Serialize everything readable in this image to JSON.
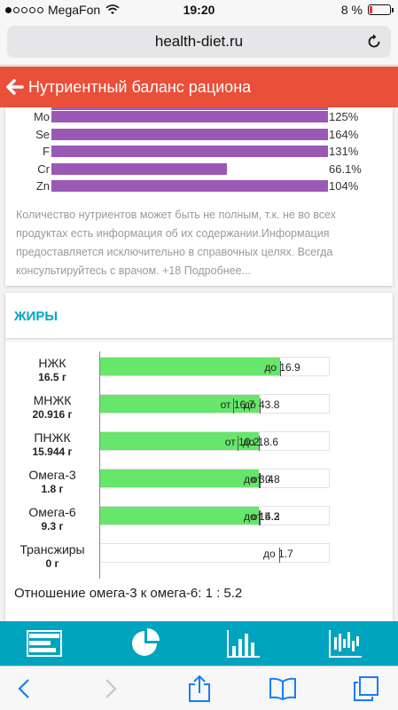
{
  "status_bar": {
    "carrier": "MegaFon",
    "time": "19:20",
    "battery": "8 %",
    "signal_bars_filled": 1,
    "signal_bars_total": 5
  },
  "browser": {
    "url": "health-diet.ru"
  },
  "header": {
    "title": "Нутриентный баланс рациона",
    "color": "#ea4f39"
  },
  "minerals": {
    "bar_color": "#9b59b6",
    "items": [
      {
        "name": "Mo",
        "percent": 125,
        "value_label": "125%"
      },
      {
        "name": "Se",
        "percent": 164,
        "value_label": "164%"
      },
      {
        "name": "F",
        "percent": 131,
        "value_label": "131%"
      },
      {
        "name": "Cr",
        "percent": 66.1,
        "value_label": "66.1%"
      },
      {
        "name": "Zn",
        "percent": 104,
        "value_label": "104%"
      }
    ],
    "disclaimer": "Количество нутриентов может быть не полным, т.к. не во всех продуктах есть информация об их содержании.Информация предоставляется исключительно в справочных целях. Всегда консультируйтесь с врачом. +18 Подробнее..."
  },
  "fats": {
    "title": "ЖИРЫ",
    "title_color": "#00a8c4",
    "bar_color": "#66e66a",
    "chart_data": {
      "type": "bar",
      "orientation": "horizontal",
      "categories": [
        "НЖК",
        "МНЖК",
        "ПНЖК",
        "Омега-3",
        "Омега-6",
        "Трансжиры"
      ],
      "series": [
        {
          "values": [
            16.5,
            20.916,
            15.944,
            1.8,
            9.3,
            0
          ]
        }
      ],
      "ranges": [
        {
          "min": null,
          "max": 16.9
        },
        {
          "min": 16.7,
          "max": 43.8
        },
        {
          "min": 10.2,
          "max": 18.6
        },
        {
          "min": 0.8,
          "max": 3.4
        },
        {
          "min": 4.2,
          "max": 15.3
        },
        {
          "min": null,
          "max": 1.7
        }
      ]
    },
    "rows": [
      {
        "name": "НЖК",
        "amount": "16.5 г",
        "from_text": "",
        "to_text": "до 16.9",
        "fill": 0.785,
        "from_pos": null,
        "to_pos": 0.785
      },
      {
        "name": "МНЖК",
        "amount": "20.916 г",
        "from_text": "от 16.7",
        "to_text": "до 43.8",
        "fill": 0.695,
        "from_pos": 0.58,
        "to_pos": 0.695
      },
      {
        "name": "ПНЖК",
        "amount": "15.944 г",
        "from_text": "от 10.2",
        "to_text": "до 18.6",
        "fill": 0.69,
        "from_pos": 0.6,
        "to_pos": 0.69
      },
      {
        "name": "Омега-3",
        "amount": "1.8 г",
        "from_text": "от 0.8",
        "to_text": "до 3.4",
        "fill": 0.69,
        "from_pos": 0.69,
        "to_pos": 0.695
      },
      {
        "name": "Омега-6",
        "amount": "9.3 г",
        "from_text": "от 4.2",
        "to_text": "до 15.3",
        "fill": 0.69,
        "from_pos": 0.69,
        "to_pos": 0.695
      },
      {
        "name": "Трансжиры",
        "amount": "0 г",
        "from_text": "",
        "to_text": "до 1.7",
        "fill": 0,
        "from_pos": null,
        "to_pos": 0.78
      }
    ],
    "ratio_text": "Отношение омега-3 к омега-6: 1 : 5.2"
  },
  "app_toolbar": {
    "color": "#00a4bf",
    "buttons": [
      "table-icon",
      "pie-chart-icon",
      "bar-chart-icon",
      "fluctuation-chart-icon"
    ]
  },
  "safari_toolbar": {
    "buttons": [
      "back-icon",
      "forward-icon",
      "share-icon",
      "bookmarks-icon",
      "tabs-icon"
    ]
  }
}
